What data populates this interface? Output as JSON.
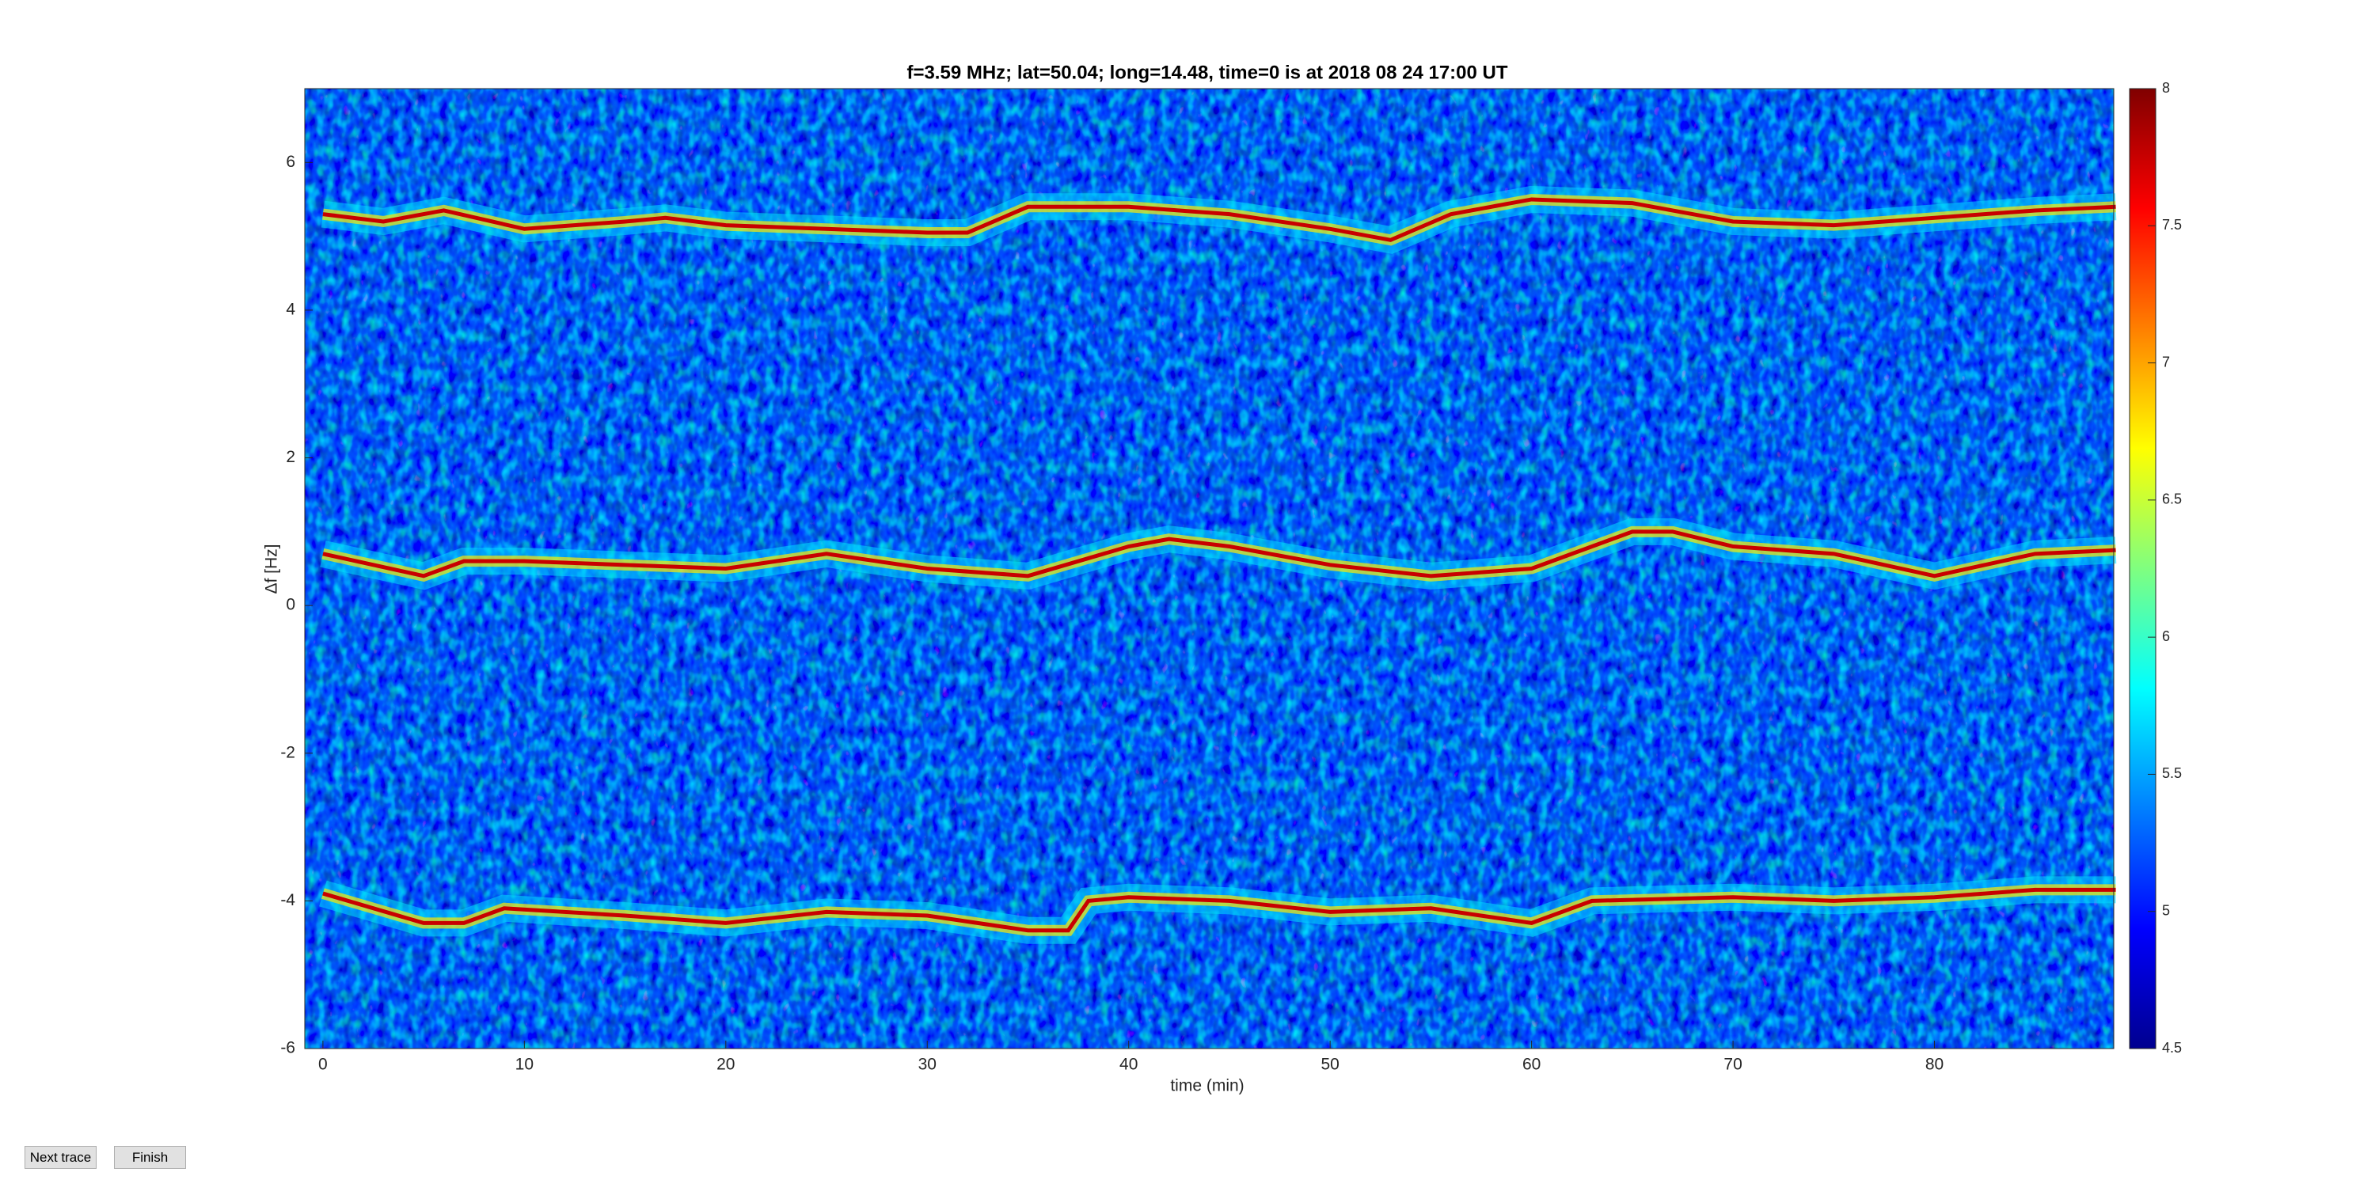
{
  "chart_data": {
    "type": "line",
    "title": "f=3.59 MHz;  lat=50.04; long=14.48, time=0 is at 2018 08 24 17:00 UT",
    "xlabel": "time (min)",
    "ylabel": "Δf [Hz]",
    "xlim": [
      -0.9,
      88.9
    ],
    "ylim": [
      -6,
      7
    ],
    "xticks": [
      0,
      10,
      20,
      30,
      40,
      50,
      60,
      70,
      80
    ],
    "yticks": [
      -6,
      -4,
      -2,
      0,
      2,
      4,
      6
    ],
    "series": [
      {
        "color": "#c80000",
        "x": [
          0,
          3,
          6,
          10,
          15,
          17,
          20,
          25,
          30,
          32,
          35,
          40,
          45,
          50,
          53,
          56,
          60,
          65,
          70,
          75,
          80,
          85,
          89
        ],
        "values": [
          5.3,
          5.2,
          5.35,
          5.1,
          5.2,
          5.25,
          5.15,
          5.1,
          5.05,
          5.05,
          5.4,
          5.4,
          5.3,
          5.1,
          4.95,
          5.3,
          5.5,
          5.45,
          5.2,
          5.15,
          5.25,
          5.35,
          5.4
        ]
      },
      {
        "color": "#c80000",
        "x": [
          0,
          5,
          7,
          10,
          15,
          20,
          25,
          30,
          35,
          40,
          42,
          45,
          50,
          55,
          60,
          65,
          67,
          70,
          75,
          80,
          85,
          89
        ],
        "values": [
          0.7,
          0.4,
          0.6,
          0.6,
          0.55,
          0.5,
          0.7,
          0.5,
          0.4,
          0.8,
          0.9,
          0.8,
          0.55,
          0.4,
          0.5,
          1.0,
          1.0,
          0.8,
          0.7,
          0.4,
          0.7,
          0.75
        ]
      },
      {
        "color": "#c80000",
        "x": [
          0,
          5,
          7,
          9,
          15,
          20,
          25,
          30,
          35,
          37,
          38,
          40,
          45,
          50,
          55,
          60,
          63,
          70,
          75,
          80,
          85,
          89
        ],
        "values": [
          -3.9,
          -4.3,
          -4.3,
          -4.1,
          -4.2,
          -4.3,
          -4.15,
          -4.2,
          -4.4,
          -4.4,
          -4.0,
          -3.95,
          -4.0,
          -4.15,
          -4.1,
          -4.3,
          -4.0,
          -3.95,
          -4.0,
          -3.95,
          -3.85,
          -3.85
        ]
      }
    ],
    "colorbar": {
      "clim": [
        4.5,
        8
      ],
      "ticks": [
        4.5,
        5,
        5.5,
        6,
        6.5,
        7,
        7.5,
        8
      ]
    }
  },
  "ui": {
    "buttons": [
      "Next trace",
      "Finish"
    ]
  }
}
